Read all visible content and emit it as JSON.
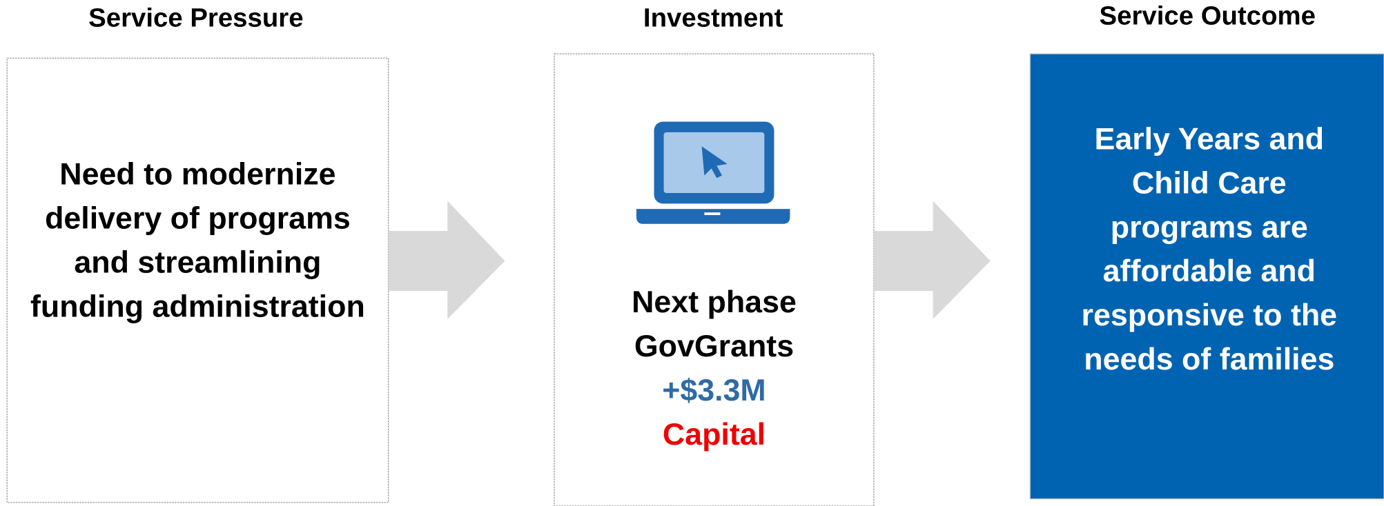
{
  "columns": [
    {
      "title": "Service Pressure",
      "lines": [
        "Need to modernize",
        "delivery of programs",
        "and streamlining",
        "funding administration"
      ]
    },
    {
      "title": "Investment",
      "lines": [
        "Next phase",
        "GovGrants",
        "+$3.3M",
        "Capital"
      ]
    },
    {
      "title": "Service Outcome",
      "lines": [
        "Early Years and",
        "Child Care",
        "programs are",
        "affordable and",
        "responsive to the",
        "needs of families"
      ]
    }
  ]
}
